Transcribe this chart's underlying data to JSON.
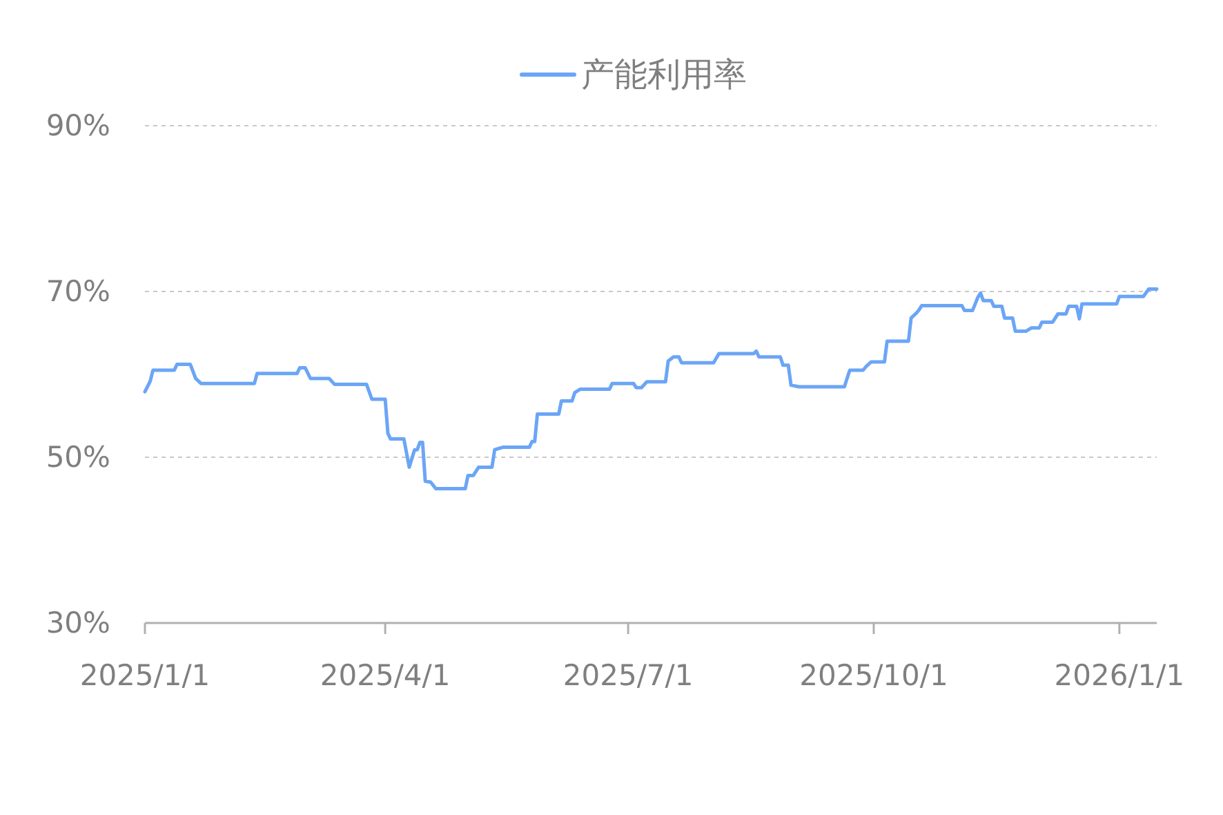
{
  "chart_data": {
    "type": "line",
    "x": [
      "2025-01-01",
      "2025-01-03",
      "2025-01-04",
      "2025-01-12",
      "2025-01-13",
      "2025-01-18",
      "2025-01-20",
      "2025-01-22",
      "2025-02-11",
      "2025-02-12",
      "2025-02-27",
      "2025-02-28",
      "2025-03-02",
      "2025-03-04",
      "2025-03-11",
      "2025-03-13",
      "2025-03-25",
      "2025-03-27",
      "2025-04-01",
      "2025-04-02",
      "2025-04-03",
      "2025-04-08",
      "2025-04-10",
      "2025-04-12",
      "2025-04-13",
      "2025-04-14",
      "2025-04-15",
      "2025-04-16",
      "2025-04-18",
      "2025-04-20",
      "2025-05-01",
      "2025-05-02",
      "2025-05-04",
      "2025-05-06",
      "2025-05-11",
      "2025-05-12",
      "2025-05-15",
      "2025-05-25",
      "2025-05-26",
      "2025-05-27",
      "2025-05-28",
      "2025-06-05",
      "2025-06-06",
      "2025-06-10",
      "2025-06-11",
      "2025-06-13",
      "2025-06-24",
      "2025-06-25",
      "2025-07-03",
      "2025-07-04",
      "2025-07-06",
      "2025-07-08",
      "2025-07-15",
      "2025-07-16",
      "2025-07-18",
      "2025-07-20",
      "2025-07-21",
      "2025-08-02",
      "2025-08-04",
      "2025-08-17",
      "2025-08-18",
      "2025-08-19",
      "2025-08-27",
      "2025-08-28",
      "2025-08-30",
      "2025-08-31",
      "2025-09-03",
      "2025-09-20",
      "2025-09-22",
      "2025-09-27",
      "2025-09-28",
      "2025-09-30",
      "2025-10-05",
      "2025-10-06",
      "2025-10-14",
      "2025-10-15",
      "2025-10-17",
      "2025-10-18",
      "2025-10-19",
      "2025-11-03",
      "2025-11-04",
      "2025-11-07",
      "2025-11-09",
      "2025-11-10",
      "2025-11-11",
      "2025-11-14",
      "2025-11-15",
      "2025-11-18",
      "2025-11-19",
      "2025-11-22",
      "2025-11-23",
      "2025-11-27",
      "2025-11-29",
      "2025-12-02",
      "2025-12-03",
      "2025-12-07",
      "2025-12-08",
      "2025-12-09",
      "2025-12-12",
      "2025-12-13",
      "2025-12-16",
      "2025-12-17",
      "2025-12-18",
      "2025-12-31",
      "2026-01-01",
      "2026-01-10",
      "2026-01-12",
      "2026-01-15"
    ],
    "series": [
      {
        "name": "产能利用率",
        "color": "#6ba5f6",
        "values": [
          57.9,
          59.2,
          60.5,
          60.5,
          61.2,
          61.2,
          59.5,
          58.9,
          58.9,
          60.1,
          60.1,
          60.8,
          60.8,
          59.5,
          59.5,
          58.8,
          58.8,
          57.0,
          57.0,
          52.9,
          52.2,
          52.2,
          48.8,
          50.9,
          50.9,
          51.8,
          51.8,
          47.1,
          47.0,
          46.2,
          46.2,
          47.8,
          47.8,
          48.8,
          48.8,
          50.9,
          51.2,
          51.2,
          51.9,
          51.9,
          55.2,
          55.2,
          56.8,
          56.8,
          57.8,
          58.2,
          58.2,
          58.9,
          58.9,
          58.4,
          58.4,
          59.1,
          59.1,
          61.6,
          62.1,
          62.1,
          61.4,
          61.4,
          62.5,
          62.5,
          62.8,
          62.1,
          62.1,
          61.1,
          61.1,
          58.7,
          58.5,
          58.5,
          60.5,
          60.5,
          60.9,
          61.5,
          61.5,
          64.0,
          64.0,
          66.8,
          67.4,
          67.8,
          68.3,
          68.3,
          67.7,
          67.7,
          69.3,
          69.8,
          68.9,
          68.9,
          68.2,
          68.2,
          66.8,
          66.8,
          65.2,
          65.2,
          65.6,
          65.6,
          66.3,
          66.3,
          66.8,
          67.3,
          67.3,
          68.2,
          68.2,
          66.7,
          68.5,
          68.5,
          69.4,
          69.4,
          70.3,
          70.3
        ]
      }
    ],
    "xlim": [
      "2025-01-01",
      "2026-01-15"
    ],
    "xticks": [
      {
        "value": "2025-01-01",
        "label": "2025/1/1"
      },
      {
        "value": "2025-04-01",
        "label": "2025/4/1"
      },
      {
        "value": "2025-07-01",
        "label": "2025/7/1"
      },
      {
        "value": "2025-10-01",
        "label": "2025/10/1"
      },
      {
        "value": "2026-01-01",
        "label": "2026/1/1"
      }
    ],
    "ylim": [
      30,
      90
    ],
    "yticks": [
      {
        "value": 30,
        "label": "30%"
      },
      {
        "value": 50,
        "label": "50%"
      },
      {
        "value": 70,
        "label": "70%"
      },
      {
        "value": 90,
        "label": "90%"
      }
    ],
    "grid": "y",
    "legend": "top",
    "line_style": "solid"
  }
}
